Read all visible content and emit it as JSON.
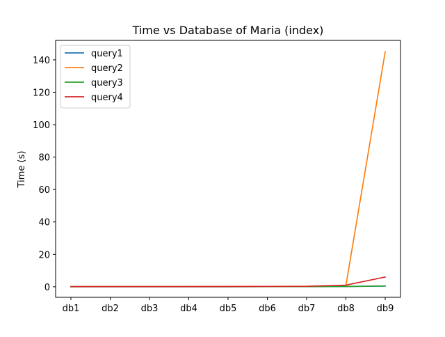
{
  "chart_data": {
    "type": "line",
    "title": "Time vs Database of Maria (index)",
    "xlabel": "",
    "ylabel": "Time (s)",
    "categories": [
      "db1",
      "db2",
      "db3",
      "db4",
      "db5",
      "db6",
      "db7",
      "db8",
      "db9"
    ],
    "ylim": [
      -6.5,
      152
    ],
    "yticks": [
      0,
      20,
      40,
      60,
      80,
      100,
      120,
      140
    ],
    "grid": false,
    "legend_position": "top-left",
    "series": [
      {
        "name": "query1",
        "color": "#1f77b4",
        "values": [
          0.05,
          0.05,
          0.05,
          0.05,
          0.06,
          0.08,
          0.1,
          0.15,
          0.4
        ]
      },
      {
        "name": "query2",
        "color": "#ff7f0e",
        "values": [
          0.1,
          0.1,
          0.1,
          0.1,
          0.15,
          0.2,
          0.3,
          0.8,
          145
        ]
      },
      {
        "name": "query3",
        "color": "#2ca02c",
        "values": [
          0.05,
          0.05,
          0.05,
          0.05,
          0.06,
          0.07,
          0.1,
          0.2,
          0.5
        ]
      },
      {
        "name": "query4",
        "color": "#d62728",
        "values": [
          0.1,
          0.1,
          0.1,
          0.1,
          0.15,
          0.2,
          0.3,
          1.0,
          6.0
        ]
      }
    ]
  }
}
